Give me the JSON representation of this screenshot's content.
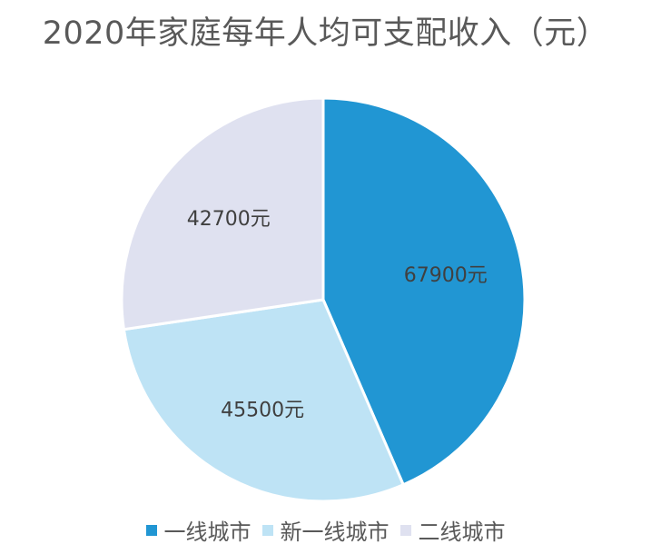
{
  "chart_data": {
    "type": "pie",
    "title": "2020年家庭每年人均可支配收入（元）",
    "categories": [
      "一线城市",
      "新一线城市",
      "二线城市"
    ],
    "values": [
      67900,
      45500,
      42700
    ],
    "data_labels": [
      "67900元",
      "45500元",
      "42700元"
    ],
    "colors": [
      "#2196D3",
      "#BEE3F5",
      "#DFE1F0"
    ],
    "legend_position": "bottom"
  }
}
